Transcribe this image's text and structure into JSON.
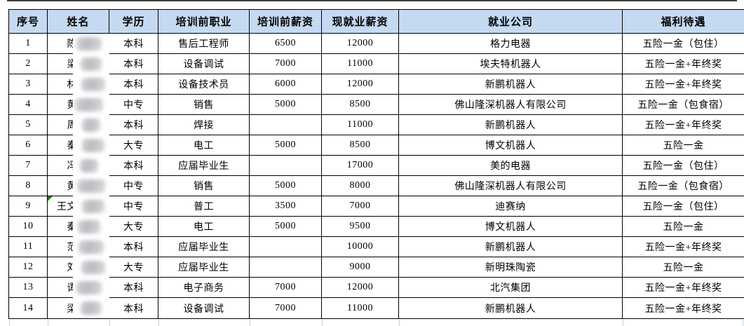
{
  "colors": {
    "header_bg": "#c5d9f1",
    "grid_border": "#000000",
    "faint_grid": "#c7cfda",
    "flag_green": "#1e7e1e",
    "redaction_gray": "#bfbfc4"
  },
  "table": {
    "columns": [
      {
        "key": "index",
        "label": "序号"
      },
      {
        "key": "name",
        "label": "姓名"
      },
      {
        "key": "education",
        "label": "学历"
      },
      {
        "key": "prev_job",
        "label": "培训前职业"
      },
      {
        "key": "prev_salary",
        "label": "培训前薪资"
      },
      {
        "key": "current_salary",
        "label": "现就业薪资"
      },
      {
        "key": "company",
        "label": "就业公司"
      },
      {
        "key": "benefits",
        "label": "福利待遇"
      }
    ],
    "rows": [
      {
        "index": "1",
        "name": "陈",
        "education": "本科",
        "prev_job": "售后工程师",
        "prev_salary": "6500",
        "current_salary": "12000",
        "company": "格力电器",
        "benefits": "五险一金（包住）",
        "name_redacted": true,
        "error_flag": false
      },
      {
        "index": "2",
        "name": "梁",
        "education": "本科",
        "prev_job": "设备调试",
        "prev_salary": "7000",
        "current_salary": "11000",
        "company": "埃夫特机器人",
        "benefits": "五险一金+年终奖",
        "name_redacted": true,
        "error_flag": false
      },
      {
        "index": "3",
        "name": "林",
        "education": "本科",
        "prev_job": "设备技术员",
        "prev_salary": "6000",
        "current_salary": "12000",
        "company": "新鹏机器人",
        "benefits": "五险一金+年终奖",
        "name_redacted": true,
        "error_flag": false
      },
      {
        "index": "4",
        "name": "黄",
        "education": "中专",
        "prev_job": "销售",
        "prev_salary": "5000",
        "current_salary": "8500",
        "company": "佛山隆深机器人有限公司",
        "benefits": "五险一金（包食宿）",
        "name_redacted": true,
        "error_flag": false
      },
      {
        "index": "5",
        "name": "周",
        "education": "本科",
        "prev_job": "焊接",
        "prev_salary": "",
        "current_salary": "11000",
        "company": "新鹏机器人",
        "benefits": "五险一金+年终奖",
        "name_redacted": true,
        "error_flag": false
      },
      {
        "index": "6",
        "name": "秦",
        "education": "大专",
        "prev_job": "电工",
        "prev_salary": "5000",
        "current_salary": "8500",
        "company": "博文机器人",
        "benefits": "五险一金",
        "name_redacted": true,
        "error_flag": false
      },
      {
        "index": "7",
        "name": "冯",
        "education": "本科",
        "prev_job": "应届毕业生",
        "prev_salary": "",
        "current_salary": "17000",
        "company": "美的电器",
        "benefits": "五险一金（包住）",
        "name_redacted": true,
        "error_flag": false
      },
      {
        "index": "8",
        "name": "黄",
        "education": "中专",
        "prev_job": "销售",
        "prev_salary": "5000",
        "current_salary": "8000",
        "company": "佛山隆深机器人有限公司",
        "benefits": "五险一金（包食宿）",
        "name_redacted": true,
        "error_flag": false
      },
      {
        "index": "9",
        "name": "王文",
        "education": "中专",
        "prev_job": "普工",
        "prev_salary": "3500",
        "current_salary": "7000",
        "company": "迪赛纳",
        "benefits": "五险一金（包住）",
        "name_redacted": true,
        "error_flag": true
      },
      {
        "index": "10",
        "name": "秦",
        "education": "大专",
        "prev_job": "电工",
        "prev_salary": "5000",
        "current_salary": "9500",
        "company": "博文机器人",
        "benefits": "五险一金",
        "name_redacted": true,
        "error_flag": false
      },
      {
        "index": "11",
        "name": "范",
        "education": "本科",
        "prev_job": "应届毕业生",
        "prev_salary": "",
        "current_salary": "10000",
        "company": "新鹏机器人",
        "benefits": "五险一金+年终奖",
        "name_redacted": true,
        "error_flag": false
      },
      {
        "index": "12",
        "name": "刘",
        "education": "大专",
        "prev_job": "应届毕业生",
        "prev_salary": "",
        "current_salary": "9000",
        "company": "新明珠陶瓷",
        "benefits": "五险一金",
        "name_redacted": true,
        "error_flag": false
      },
      {
        "index": "13",
        "name": "谭",
        "education": "本科",
        "prev_job": "电子商务",
        "prev_salary": "7000",
        "current_salary": "12000",
        "company": "北汽集团",
        "benefits": "五险一金+年终奖",
        "name_redacted": true,
        "error_flag": false
      },
      {
        "index": "14",
        "name": "梁",
        "education": "本科",
        "prev_job": "设备调试",
        "prev_salary": "7000",
        "current_salary": "11000",
        "company": "新鹏机器人",
        "benefits": "五险一金+年终奖",
        "name_redacted": true,
        "error_flag": false
      }
    ]
  }
}
